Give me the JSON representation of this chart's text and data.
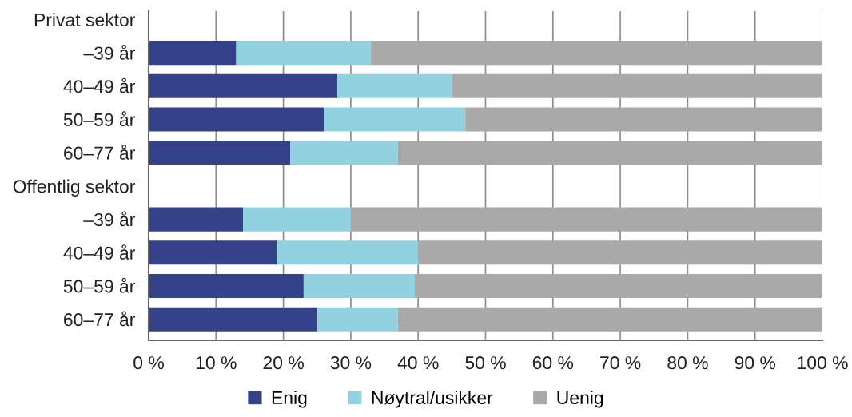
{
  "chart_data": {
    "type": "bar",
    "orientation": "horizontal",
    "stacked": true,
    "categories": [
      "Privat sektor",
      "–39 år",
      "40–49 år",
      "50–59 år",
      "60–77 år",
      "Offentlig sektor",
      "–39 år",
      "40–49 år",
      "50–59 år",
      "60–77 år"
    ],
    "series": [
      {
        "name": "Enig",
        "color": "#344389",
        "values": [
          null,
          13,
          28,
          26,
          21,
          null,
          14,
          19,
          23,
          25
        ]
      },
      {
        "name": "Nøytral/usikker",
        "color": "#92d1e0",
        "values": [
          null,
          20,
          17,
          21,
          16,
          null,
          16,
          21,
          16.5,
          12
        ]
      },
      {
        "name": "Uenig",
        "color": "#aaa9aa",
        "values": [
          null,
          67,
          55,
          53,
          63,
          null,
          70,
          60,
          60.5,
          63
        ]
      }
    ],
    "xlim": [
      0,
      100
    ],
    "xticks": [
      {
        "value": 0,
        "label": "0 %"
      },
      {
        "value": 10,
        "label": "10 %"
      },
      {
        "value": 20,
        "label": "20 %"
      },
      {
        "value": 30,
        "label": "30 %"
      },
      {
        "value": 40,
        "label": "40 %"
      },
      {
        "value": 50,
        "label": "50 %"
      },
      {
        "value": 60,
        "label": "60 %"
      },
      {
        "value": 70,
        "label": "70 %"
      },
      {
        "value": 80,
        "label": "80 %"
      },
      {
        "value": 90,
        "label": "90 %"
      },
      {
        "value": 100,
        "label": "100 %"
      }
    ],
    "grid": "x",
    "legend": "bottom"
  }
}
